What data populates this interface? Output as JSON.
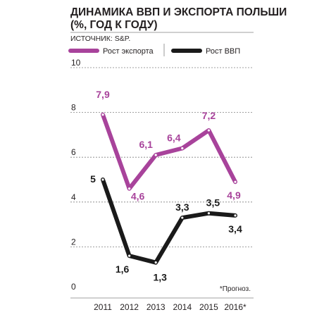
{
  "title_line1": "ДИНАМИКА ВВП И ЭКСПОРТА ПОЛЬШИ",
  "title_line2": "(%, ГОД К ГОДУ)",
  "source": "ИСТОЧНИК: S&P.",
  "note": "*Прогноз.",
  "colors": {
    "export": "#a8439b",
    "gdp": "#1a1a1a",
    "grid": "#808080",
    "text": "#231f20"
  },
  "chart_data": {
    "type": "line",
    "categories": [
      "2011",
      "2012",
      "2013",
      "2014",
      "2015",
      "2016*"
    ],
    "ylim": [
      0,
      10
    ],
    "yticks": [
      "0",
      "2",
      "4",
      "6",
      "8",
      "10"
    ],
    "grid": true,
    "legend": "top",
    "series": [
      {
        "name": "Рост экспорта",
        "key": "export",
        "values": [
          7.9,
          4.6,
          6.1,
          6.4,
          7.2,
          4.9
        ],
        "labels": [
          "7,9",
          "4,6",
          "6,1",
          "6,4",
          "7,2",
          "4,9"
        ]
      },
      {
        "name": "Рост ВВП",
        "key": "gdp",
        "values": [
          5.0,
          1.6,
          1.3,
          3.3,
          3.5,
          3.4
        ],
        "labels": [
          "5",
          "1,6",
          "1,3",
          "3,3",
          "3,5",
          "3,4"
        ]
      }
    ]
  }
}
